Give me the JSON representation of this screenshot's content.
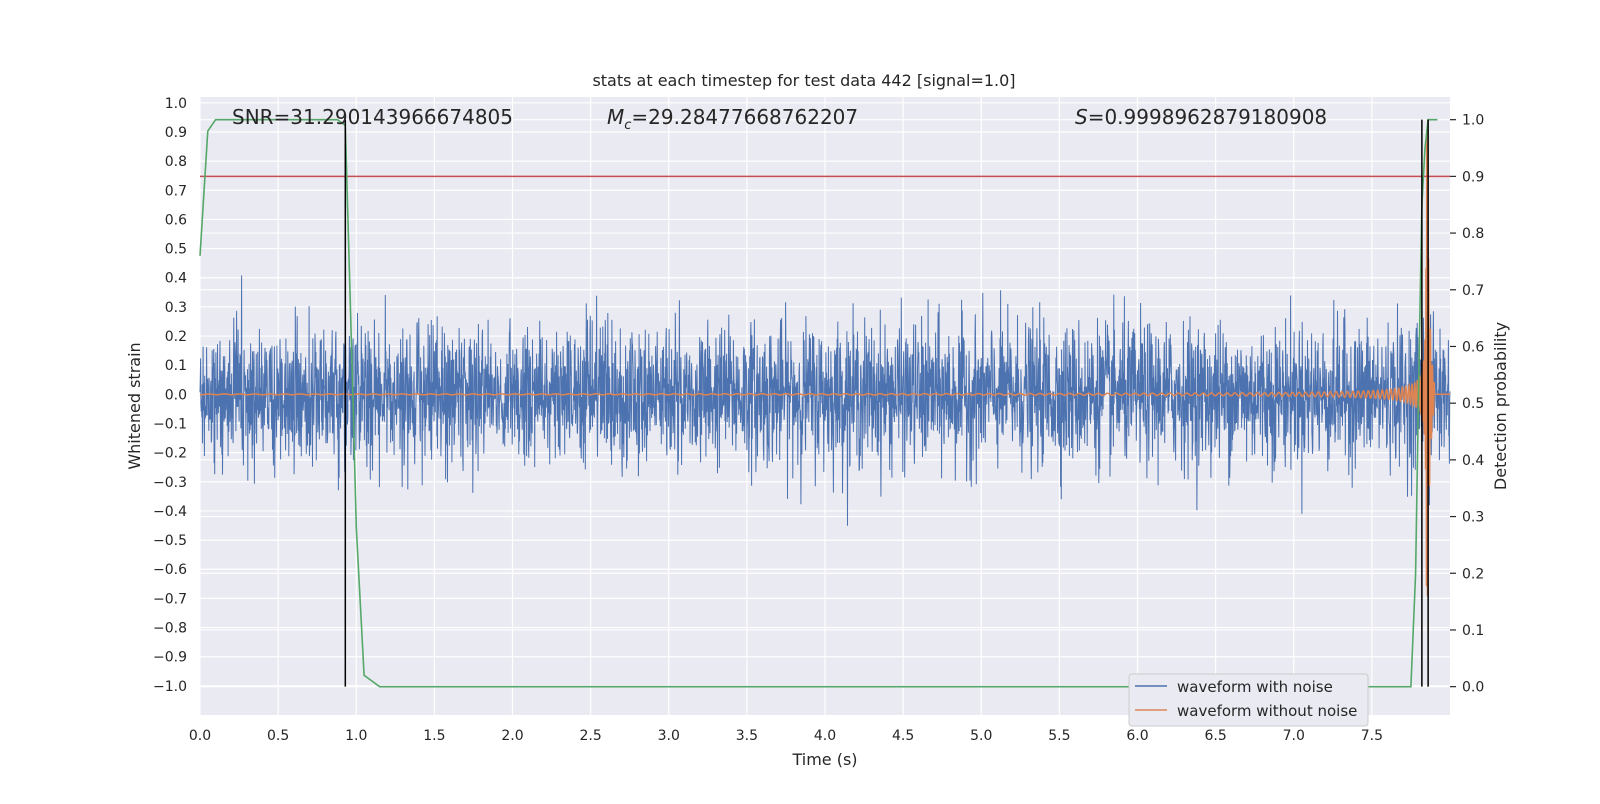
{
  "chart_data": {
    "type": "line",
    "title": "stats at each timestep for test data 442 [signal=1.0]",
    "xlabel": "Time (s)",
    "ylabel": "Whitened strain",
    "y2label": "Detection probability",
    "xlim": [
      0.0,
      8.0
    ],
    "ylim": [
      -1.1,
      1.02
    ],
    "y2lim": [
      -0.05,
      1.04
    ],
    "xticks": [
      "0.0",
      "0.5",
      "1.0",
      "1.5",
      "2.0",
      "2.5",
      "3.0",
      "3.5",
      "4.0",
      "4.5",
      "5.0",
      "5.5",
      "6.0",
      "6.5",
      "7.0",
      "7.5"
    ],
    "xtick_values": [
      0.0,
      0.5,
      1.0,
      1.5,
      2.0,
      2.5,
      3.0,
      3.5,
      4.0,
      4.5,
      5.0,
      5.5,
      6.0,
      6.5,
      7.0,
      7.5
    ],
    "yticks": [
      "1.0",
      "0.9",
      "0.8",
      "0.7",
      "0.6",
      "0.5",
      "0.4",
      "0.3",
      "0.2",
      "0.1",
      "0.0",
      "−0.1",
      "−0.2",
      "−0.3",
      "−0.4",
      "−0.5",
      "−0.6",
      "−0.7",
      "−0.8",
      "−0.9",
      "−1.0"
    ],
    "ytick_values": [
      1.0,
      0.9,
      0.8,
      0.7,
      0.6,
      0.5,
      0.4,
      0.3,
      0.2,
      0.1,
      0.0,
      -0.1,
      -0.2,
      -0.3,
      -0.4,
      -0.5,
      -0.6,
      -0.7,
      -0.8,
      -0.9,
      -1.0
    ],
    "y2ticks": [
      "1.0",
      "0.9",
      "0.8",
      "0.7",
      "0.6",
      "0.5",
      "0.4",
      "0.3",
      "0.2",
      "0.1",
      "0.0"
    ],
    "y2tick_values": [
      1.0,
      0.9,
      0.8,
      0.7,
      0.6,
      0.5,
      0.4,
      0.3,
      0.2,
      0.1,
      0.0
    ],
    "annotations": {
      "snr": "SNR=31.290143966674805",
      "mc_symbol": "M",
      "mc_sub": "c",
      "mc_value": "=29.28477668762207",
      "s_symbol": "S",
      "s_value": "=0.9998962879180908"
    },
    "threshold": 0.9,
    "vertical_markers": [
      0.93,
      7.82,
      7.86
    ],
    "detection_probability": {
      "x": [
        0.0,
        0.05,
        0.1,
        0.15,
        0.2,
        0.3,
        0.4,
        0.5,
        0.6,
        0.7,
        0.8,
        0.88,
        0.93,
        0.98,
        1.0,
        1.05,
        1.1,
        1.15,
        1.2,
        1.5,
        2.0,
        2.3,
        2.5,
        3.0,
        4.0,
        4.7,
        5.0,
        6.0,
        7.0,
        7.5,
        7.7,
        7.75,
        7.78,
        7.8,
        7.82,
        7.84,
        7.86,
        7.88,
        7.9,
        7.92
      ],
      "y": [
        0.76,
        0.98,
        1.0,
        1.0,
        1.0,
        1.0,
        1.0,
        1.0,
        1.0,
        1.0,
        1.0,
        1.0,
        0.99,
        0.5,
        0.28,
        0.02,
        0.01,
        0.0,
        0.0,
        0.0,
        0.0,
        0.0,
        0.0,
        0.0,
        0.0,
        0.0,
        0.0,
        0.0,
        0.0,
        0.0,
        0.0,
        0.0,
        0.2,
        0.55,
        0.85,
        0.95,
        1.0,
        1.0,
        1.0,
        1.0
      ]
    },
    "series": [
      {
        "name": "waveform with noise",
        "color": "#4c72b0",
        "noise_sigma": 0.12,
        "noise_peak": 0.5
      },
      {
        "name": "waveform without noise",
        "color": "#dd8452",
        "chirp_merger_time": 7.85,
        "chirp_peak_amplitude": 1.0
      },
      {
        "color": "#55a868"
      },
      {
        "color": "#c44e52"
      }
    ],
    "legend": {
      "placement": "lower-right",
      "entries": [
        {
          "label": "waveform with noise",
          "color": "#4c72b0"
        },
        {
          "label": "waveform without noise",
          "color": "#dd8452"
        }
      ]
    },
    "grid": true,
    "colors": {
      "background": "#eaeaf2",
      "grid": "#ffffff",
      "marker": "#000000"
    }
  }
}
